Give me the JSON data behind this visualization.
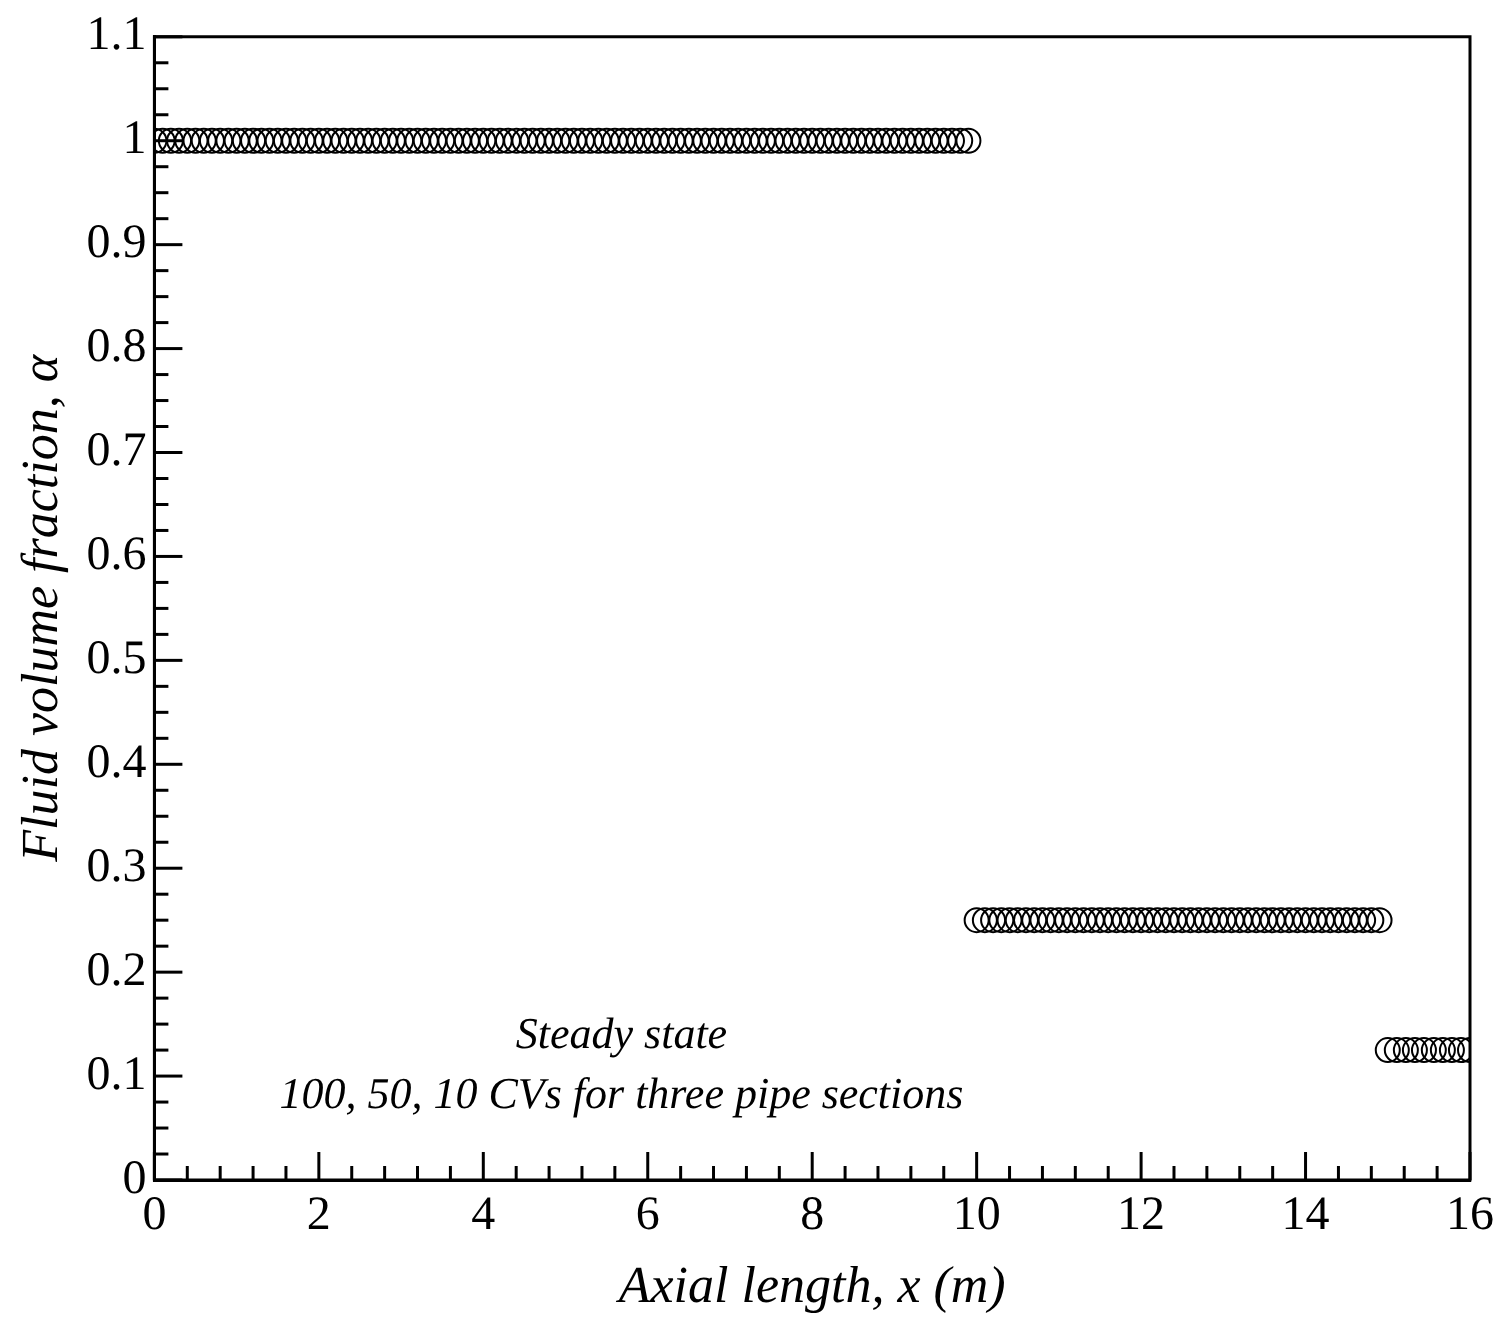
{
  "chart_data": {
    "type": "scatter",
    "xlabel": "Axial length, x (m)",
    "ylabel": "Fluid volume fraction, α",
    "marker": "circle",
    "grid": false,
    "annotations": [
      "Steady state",
      "100, 50, 10 CVs for three pipe sections"
    ],
    "xlim": [
      0,
      16
    ],
    "ylim": [
      0,
      1.1
    ],
    "xticks": [
      0,
      {
        "value": 0.4,
        "label": null
      },
      {
        "value": 0.8,
        "label": null
      },
      {
        "value": 1.2,
        "label": null
      },
      {
        "value": 1.6,
        "label": null
      },
      2,
      {
        "value": 2.4,
        "label": null
      },
      {
        "value": 2.8,
        "label": null
      },
      {
        "value": 3.2,
        "label": null
      },
      {
        "value": 3.6,
        "label": null
      },
      4,
      {
        "value": 4.4,
        "label": null
      },
      {
        "value": 4.8,
        "label": null
      },
      {
        "value": 5.2,
        "label": null
      },
      {
        "value": 5.6,
        "label": null
      },
      6,
      {
        "value": 6.4,
        "label": null
      },
      {
        "value": 6.8,
        "label": null
      },
      {
        "value": 7.2,
        "label": null
      },
      {
        "value": 7.6,
        "label": null
      },
      8,
      {
        "value": 8.4,
        "label": null
      },
      {
        "value": 8.8,
        "label": null
      },
      {
        "value": 9.2,
        "label": null
      },
      {
        "value": 9.6,
        "label": null
      },
      10,
      {
        "value": 10.4,
        "label": null
      },
      {
        "value": 10.8,
        "label": null
      },
      {
        "value": 11.2,
        "label": null
      },
      {
        "value": 11.6,
        "label": null
      },
      12,
      {
        "value": 12.4,
        "label": null
      },
      {
        "value": 12.8,
        "label": null
      },
      {
        "value": 13.2,
        "label": null
      },
      {
        "value": 13.6,
        "label": null
      },
      14,
      {
        "value": 14.4,
        "label": null
      },
      {
        "value": 14.8,
        "label": null
      },
      {
        "value": 15.2,
        "label": null
      },
      {
        "value": 15.6,
        "label": null
      },
      16
    ],
    "yticks": [
      0,
      {
        "value": 0.025,
        "label": null
      },
      {
        "value": 0.05,
        "label": null
      },
      {
        "value": 0.075,
        "label": null
      },
      0.1,
      {
        "value": 0.125,
        "label": null
      },
      {
        "value": 0.15,
        "label": null
      },
      {
        "value": 0.175,
        "label": null
      },
      0.2,
      {
        "value": 0.225,
        "label": null
      },
      {
        "value": 0.25,
        "label": null
      },
      {
        "value": 0.275,
        "label": null
      },
      0.3,
      {
        "value": 0.325,
        "label": null
      },
      {
        "value": 0.35,
        "label": null
      },
      {
        "value": 0.375,
        "label": null
      },
      0.4,
      {
        "value": 0.425,
        "label": null
      },
      {
        "value": 0.45,
        "label": null
      },
      {
        "value": 0.475,
        "label": null
      },
      0.5,
      {
        "value": 0.525,
        "label": null
      },
      {
        "value": 0.55,
        "label": null
      },
      {
        "value": 0.575,
        "label": null
      },
      0.6,
      {
        "value": 0.625,
        "label": null
      },
      {
        "value": 0.65,
        "label": null
      },
      {
        "value": 0.675,
        "label": null
      },
      0.7,
      {
        "value": 0.725,
        "label": null
      },
      {
        "value": 0.75,
        "label": null
      },
      {
        "value": 0.775,
        "label": null
      },
      0.8,
      {
        "value": 0.825,
        "label": null
      },
      {
        "value": 0.85,
        "label": null
      },
      {
        "value": 0.875,
        "label": null
      },
      0.9,
      {
        "value": 0.925,
        "label": null
      },
      {
        "value": 0.95,
        "label": null
      },
      {
        "value": 0.975,
        "label": null
      },
      1,
      {
        "value": 1.025,
        "label": null
      },
      {
        "value": 1.05,
        "label": null
      },
      {
        "value": 1.075,
        "label": null
      },
      1.1
    ],
    "series": [
      {
        "color": "#000000",
        "x": [
          0,
          0.1,
          0.2,
          0.3,
          0.4,
          0.5,
          0.6,
          0.7,
          0.8,
          0.9,
          1,
          1.1,
          1.2,
          1.3,
          1.4,
          1.5,
          1.6,
          1.7,
          1.8,
          1.9,
          2,
          2.1,
          2.2,
          2.3,
          2.4,
          2.5,
          2.6,
          2.7,
          2.8,
          2.9,
          3,
          3.1,
          3.2,
          3.3,
          3.4,
          3.5,
          3.6,
          3.7,
          3.8,
          3.9,
          4,
          4.1,
          4.2,
          4.3,
          4.4,
          4.5,
          4.6,
          4.7,
          4.8,
          4.9,
          5,
          5.1,
          5.2,
          5.3,
          5.4,
          5.5,
          5.6,
          5.7,
          5.8,
          5.9,
          6,
          6.1,
          6.2,
          6.3,
          6.4,
          6.5,
          6.6,
          6.7,
          6.8,
          6.9,
          7,
          7.1,
          7.2,
          7.3,
          7.4,
          7.5,
          7.6,
          7.7,
          7.8,
          7.9,
          8,
          8.1,
          8.2,
          8.3,
          8.4,
          8.5,
          8.6,
          8.7,
          8.8,
          8.9,
          9,
          9.1,
          9.2,
          9.3,
          9.4,
          9.5,
          9.6,
          9.7,
          9.8,
          9.9
        ],
        "values": [
          1,
          1,
          1,
          1,
          1,
          1,
          1,
          1,
          1,
          1,
          1,
          1,
          1,
          1,
          1,
          1,
          1,
          1,
          1,
          1,
          1,
          1,
          1,
          1,
          1,
          1,
          1,
          1,
          1,
          1,
          1,
          1,
          1,
          1,
          1,
          1,
          1,
          1,
          1,
          1,
          1,
          1,
          1,
          1,
          1,
          1,
          1,
          1,
          1,
          1,
          1,
          1,
          1,
          1,
          1,
          1,
          1,
          1,
          1,
          1,
          1,
          1,
          1,
          1,
          1,
          1,
          1,
          1,
          1,
          1,
          1,
          1,
          1,
          1,
          1,
          1,
          1,
          1,
          1,
          1,
          1,
          1,
          1,
          1,
          1,
          1,
          1,
          1,
          1,
          1,
          1,
          1,
          1,
          1,
          1,
          1,
          1,
          1,
          1,
          1
        ]
      },
      {
        "color": "#000000",
        "x": [
          10,
          10.1,
          10.2,
          10.3,
          10.4,
          10.5,
          10.6,
          10.7,
          10.8,
          10.9,
          11,
          11.1,
          11.2,
          11.3,
          11.4,
          11.5,
          11.6,
          11.7,
          11.8,
          11.9,
          12,
          12.1,
          12.2,
          12.3,
          12.4,
          12.5,
          12.6,
          12.7,
          12.8,
          12.9,
          13,
          13.1,
          13.2,
          13.3,
          13.4,
          13.5,
          13.6,
          13.7,
          13.8,
          13.9,
          14,
          14.1,
          14.2,
          14.3,
          14.4,
          14.5,
          14.6,
          14.7,
          14.8,
          14.9
        ],
        "values": [
          0.25,
          0.25,
          0.25,
          0.25,
          0.25,
          0.25,
          0.25,
          0.25,
          0.25,
          0.25,
          0.25,
          0.25,
          0.25,
          0.25,
          0.25,
          0.25,
          0.25,
          0.25,
          0.25,
          0.25,
          0.25,
          0.25,
          0.25,
          0.25,
          0.25,
          0.25,
          0.25,
          0.25,
          0.25,
          0.25,
          0.25,
          0.25,
          0.25,
          0.25,
          0.25,
          0.25,
          0.25,
          0.25,
          0.25,
          0.25,
          0.25,
          0.25,
          0.25,
          0.25,
          0.25,
          0.25,
          0.25,
          0.25,
          0.25,
          0.25
        ]
      },
      {
        "color": "#000000",
        "x": [
          15,
          15.11,
          15.22,
          15.33,
          15.44,
          15.56,
          15.67,
          15.78,
          15.89,
          16
        ],
        "values": [
          0.125,
          0.125,
          0.125,
          0.125,
          0.125,
          0.125,
          0.125,
          0.125,
          0.125,
          0.125
        ]
      }
    ]
  }
}
